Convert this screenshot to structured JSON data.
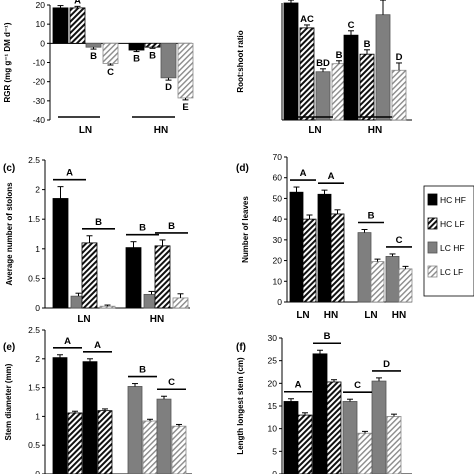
{
  "legend": {
    "items": [
      {
        "key": "hchf",
        "label": "HC HF"
      },
      {
        "key": "hclf",
        "label": "HC LF"
      },
      {
        "key": "lchf",
        "label": "LC HF"
      },
      {
        "key": "lclf",
        "label": "LC LF"
      }
    ]
  },
  "chart_data": [
    {
      "id": "rgr",
      "panel": "",
      "type": "bar",
      "ylabel": "RGR (mg g⁻¹ DM d⁻¹)",
      "ylim": [
        -40,
        20
      ],
      "yticks": [
        20,
        10,
        0,
        -10,
        -20,
        -30,
        -40
      ],
      "groups": [
        "LN",
        "HN"
      ],
      "group_line": true,
      "group_labels_bottom": true,
      "series_order": [
        "hchf",
        "hclf",
        "lchf",
        "lclf"
      ],
      "values": [
        [
          18.5,
          18.5,
          -2,
          -10.5
        ],
        [
          -3.5,
          -2,
          -18,
          -28.5
        ]
      ],
      "errors": [
        [
          1.2,
          0.8,
          1.0,
          0.8
        ],
        [
          0.8,
          0.6,
          1.2,
          1.0
        ]
      ],
      "bar_labels": [
        [
          "",
          "A",
          "B",
          "C"
        ],
        [
          "B",
          "B",
          "D",
          "E"
        ]
      ]
    },
    {
      "id": "rootshoot",
      "panel": "",
      "type": "bar",
      "ylabel": "Root:shoot ratio",
      "ylim": [
        0,
        0.8
      ],
      "yticks": [],
      "groups": [
        "LN",
        "HN"
      ],
      "group_line": true,
      "group_labels_bottom": true,
      "series_order": [
        "hchf",
        "hclf",
        "lchf",
        "lclf"
      ],
      "values": [
        [
          0.8,
          0.63,
          0.33,
          0.385
        ],
        [
          0.58,
          0.45,
          0.72,
          0.34
        ]
      ],
      "errors": [
        [
          0.02,
          0.02,
          0.02,
          0.02
        ],
        [
          0.03,
          0.03,
          0.1,
          0.05
        ]
      ],
      "bar_labels": [
        [
          "",
          "AC",
          "BD",
          "B"
        ],
        [
          "C",
          "B",
          "",
          "D"
        ]
      ]
    },
    {
      "id": "stolons",
      "panel": "(c)",
      "type": "bar",
      "ylabel": "Average number of stolons",
      "ylim": [
        0,
        2.5
      ],
      "yticks": [
        0,
        0.5,
        1,
        1.5,
        2,
        2.5
      ],
      "groups": [
        "LN",
        "HN"
      ],
      "group_line": false,
      "group_labels_bottom": true,
      "series_order": [
        "hchf",
        "lchf",
        "hclf",
        "lclf"
      ],
      "values": [
        [
          1.85,
          0.2,
          1.1,
          0.03
        ],
        [
          1.02,
          0.23,
          1.05,
          0.17
        ]
      ],
      "errors": [
        [
          0.2,
          0.05,
          0.12,
          0.02
        ],
        [
          0.1,
          0.05,
          0.1,
          0.07
        ]
      ],
      "brackets": [
        {
          "group": 0,
          "pair": 0,
          "label": "A"
        },
        {
          "group": 0,
          "pair": 1,
          "label": "B"
        },
        {
          "group": 1,
          "pair": 0,
          "label": "B"
        },
        {
          "group": 1,
          "pair": 1,
          "label": "B"
        }
      ]
    },
    {
      "id": "leaves",
      "panel": "(d)",
      "type": "bar",
      "ylabel": "Number of leaves",
      "ylim": [
        0,
        70
      ],
      "yticks": [
        0,
        10,
        20,
        30,
        40,
        50,
        60,
        70
      ],
      "groups": [
        "HC",
        "LC"
      ],
      "group_line": false,
      "group_labels_bottom": false,
      "sublabels": [
        "LN",
        "HN",
        "LN",
        "HN"
      ],
      "series_order": [
        "hf",
        "lf"
      ],
      "series_pattern": [
        [
          "hchf",
          "hclf"
        ],
        [
          "lchf",
          "lclf"
        ]
      ],
      "values": [
        [
          53,
          40,
          52,
          42.5
        ],
        [
          33.5,
          19.5,
          22,
          16
        ]
      ],
      "errors": [
        [
          2.5,
          2,
          2,
          2
        ],
        [
          1.5,
          1.2,
          1.2,
          1.2
        ]
      ],
      "brackets": [
        {
          "group": 0,
          "pair": 0,
          "label": "A"
        },
        {
          "group": 0,
          "pair": 1,
          "label": "A"
        },
        {
          "group": 1,
          "pair": 0,
          "label": "B"
        },
        {
          "group": 1,
          "pair": 1,
          "label": "C"
        }
      ]
    },
    {
      "id": "diameter",
      "panel": "(e)",
      "type": "bar",
      "ylabel": "Stem diameter (mm)",
      "ylim": [
        0,
        2.5
      ],
      "yticks": [
        0,
        0.5,
        1,
        1.5,
        2,
        2.5
      ],
      "groups": [
        "HC",
        "LC"
      ],
      "group_line": false,
      "group_labels_bottom": false,
      "series_pattern": [
        [
          "hchf",
          "hclf"
        ],
        [
          "lchf",
          "lclf"
        ]
      ],
      "values": [
        [
          2.02,
          1.06,
          1.95,
          1.1
        ],
        [
          1.52,
          0.92,
          1.3,
          0.83
        ]
      ],
      "errors": [
        [
          0.05,
          0.03,
          0.05,
          0.03
        ],
        [
          0.05,
          0.03,
          0.05,
          0.03
        ]
      ],
      "brackets": [
        {
          "group": 0,
          "pair": 0,
          "label": "A"
        },
        {
          "group": 0,
          "pair": 1,
          "label": "A"
        },
        {
          "group": 1,
          "pair": 0,
          "label": "B"
        },
        {
          "group": 1,
          "pair": 1,
          "label": "C"
        }
      ]
    },
    {
      "id": "longest",
      "panel": "(f)",
      "type": "bar",
      "ylabel": "Length longest stem (cm)",
      "ylim": [
        0,
        30
      ],
      "yticks": [
        0,
        5,
        10,
        15,
        20,
        25,
        30
      ],
      "groups": [
        "HC",
        "LC"
      ],
      "group_line": false,
      "group_labels_bottom": false,
      "series_pattern": [
        [
          "hchf",
          "hclf"
        ],
        [
          "lchf",
          "lclf"
        ]
      ],
      "values": [
        [
          16,
          13,
          26.5,
          20.3
        ],
        [
          16,
          9,
          20.5,
          12.7
        ]
      ],
      "errors": [
        [
          0.6,
          0.5,
          0.8,
          0.5
        ],
        [
          0.5,
          0.4,
          0.7,
          0.5
        ]
      ],
      "brackets": [
        {
          "group": 0,
          "pair": 0,
          "label": "A"
        },
        {
          "group": 0,
          "pair": 1,
          "label": "B"
        },
        {
          "group": 1,
          "pair": 0,
          "label": "C"
        },
        {
          "group": 1,
          "pair": 1,
          "label": "D"
        }
      ]
    }
  ]
}
